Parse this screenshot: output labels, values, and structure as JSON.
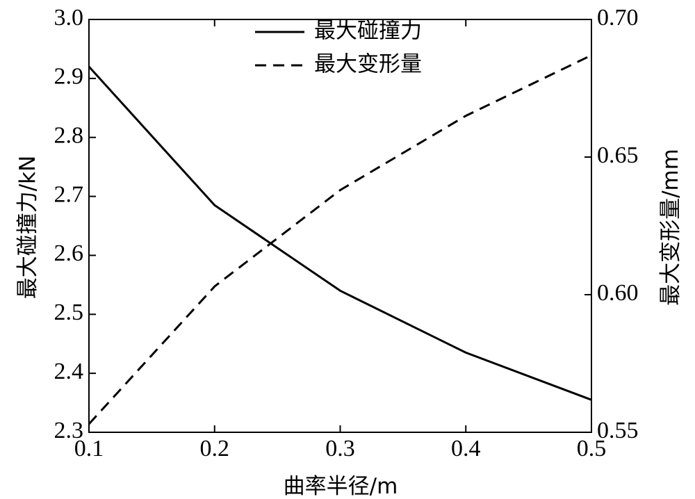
{
  "chart_data": {
    "type": "line",
    "x": [
      0.1,
      0.2,
      0.3,
      0.4,
      0.5
    ],
    "xlabel": "曲率半径/m",
    "xlim": [
      0.1,
      0.5
    ],
    "xticks": [
      "0.1",
      "0.2",
      "0.3",
      "0.4",
      "0.5"
    ],
    "y_left": {
      "label": "最大碰撞力/kN",
      "lim": [
        2.3,
        3.0
      ],
      "ticks": [
        "2.3",
        "2.4",
        "2.5",
        "2.6",
        "2.7",
        "2.8",
        "2.9",
        "3.0"
      ]
    },
    "y_right": {
      "label": "最大变形量/mm",
      "lim": [
        0.55,
        0.7
      ],
      "ticks": [
        "0.55",
        "0.60",
        "0.65",
        "0.70"
      ]
    },
    "series": [
      {
        "name": "最大碰撞力",
        "axis": "left",
        "style": "solid",
        "color": "#000000",
        "values": [
          2.92,
          2.685,
          2.54,
          2.435,
          2.355
        ]
      },
      {
        "name": "最大变形量",
        "axis": "right",
        "style": "dashed",
        "color": "#000000",
        "values": [
          0.553,
          0.603,
          0.638,
          0.665,
          0.687
        ]
      }
    ],
    "legend": "top-center",
    "grid": false
  }
}
